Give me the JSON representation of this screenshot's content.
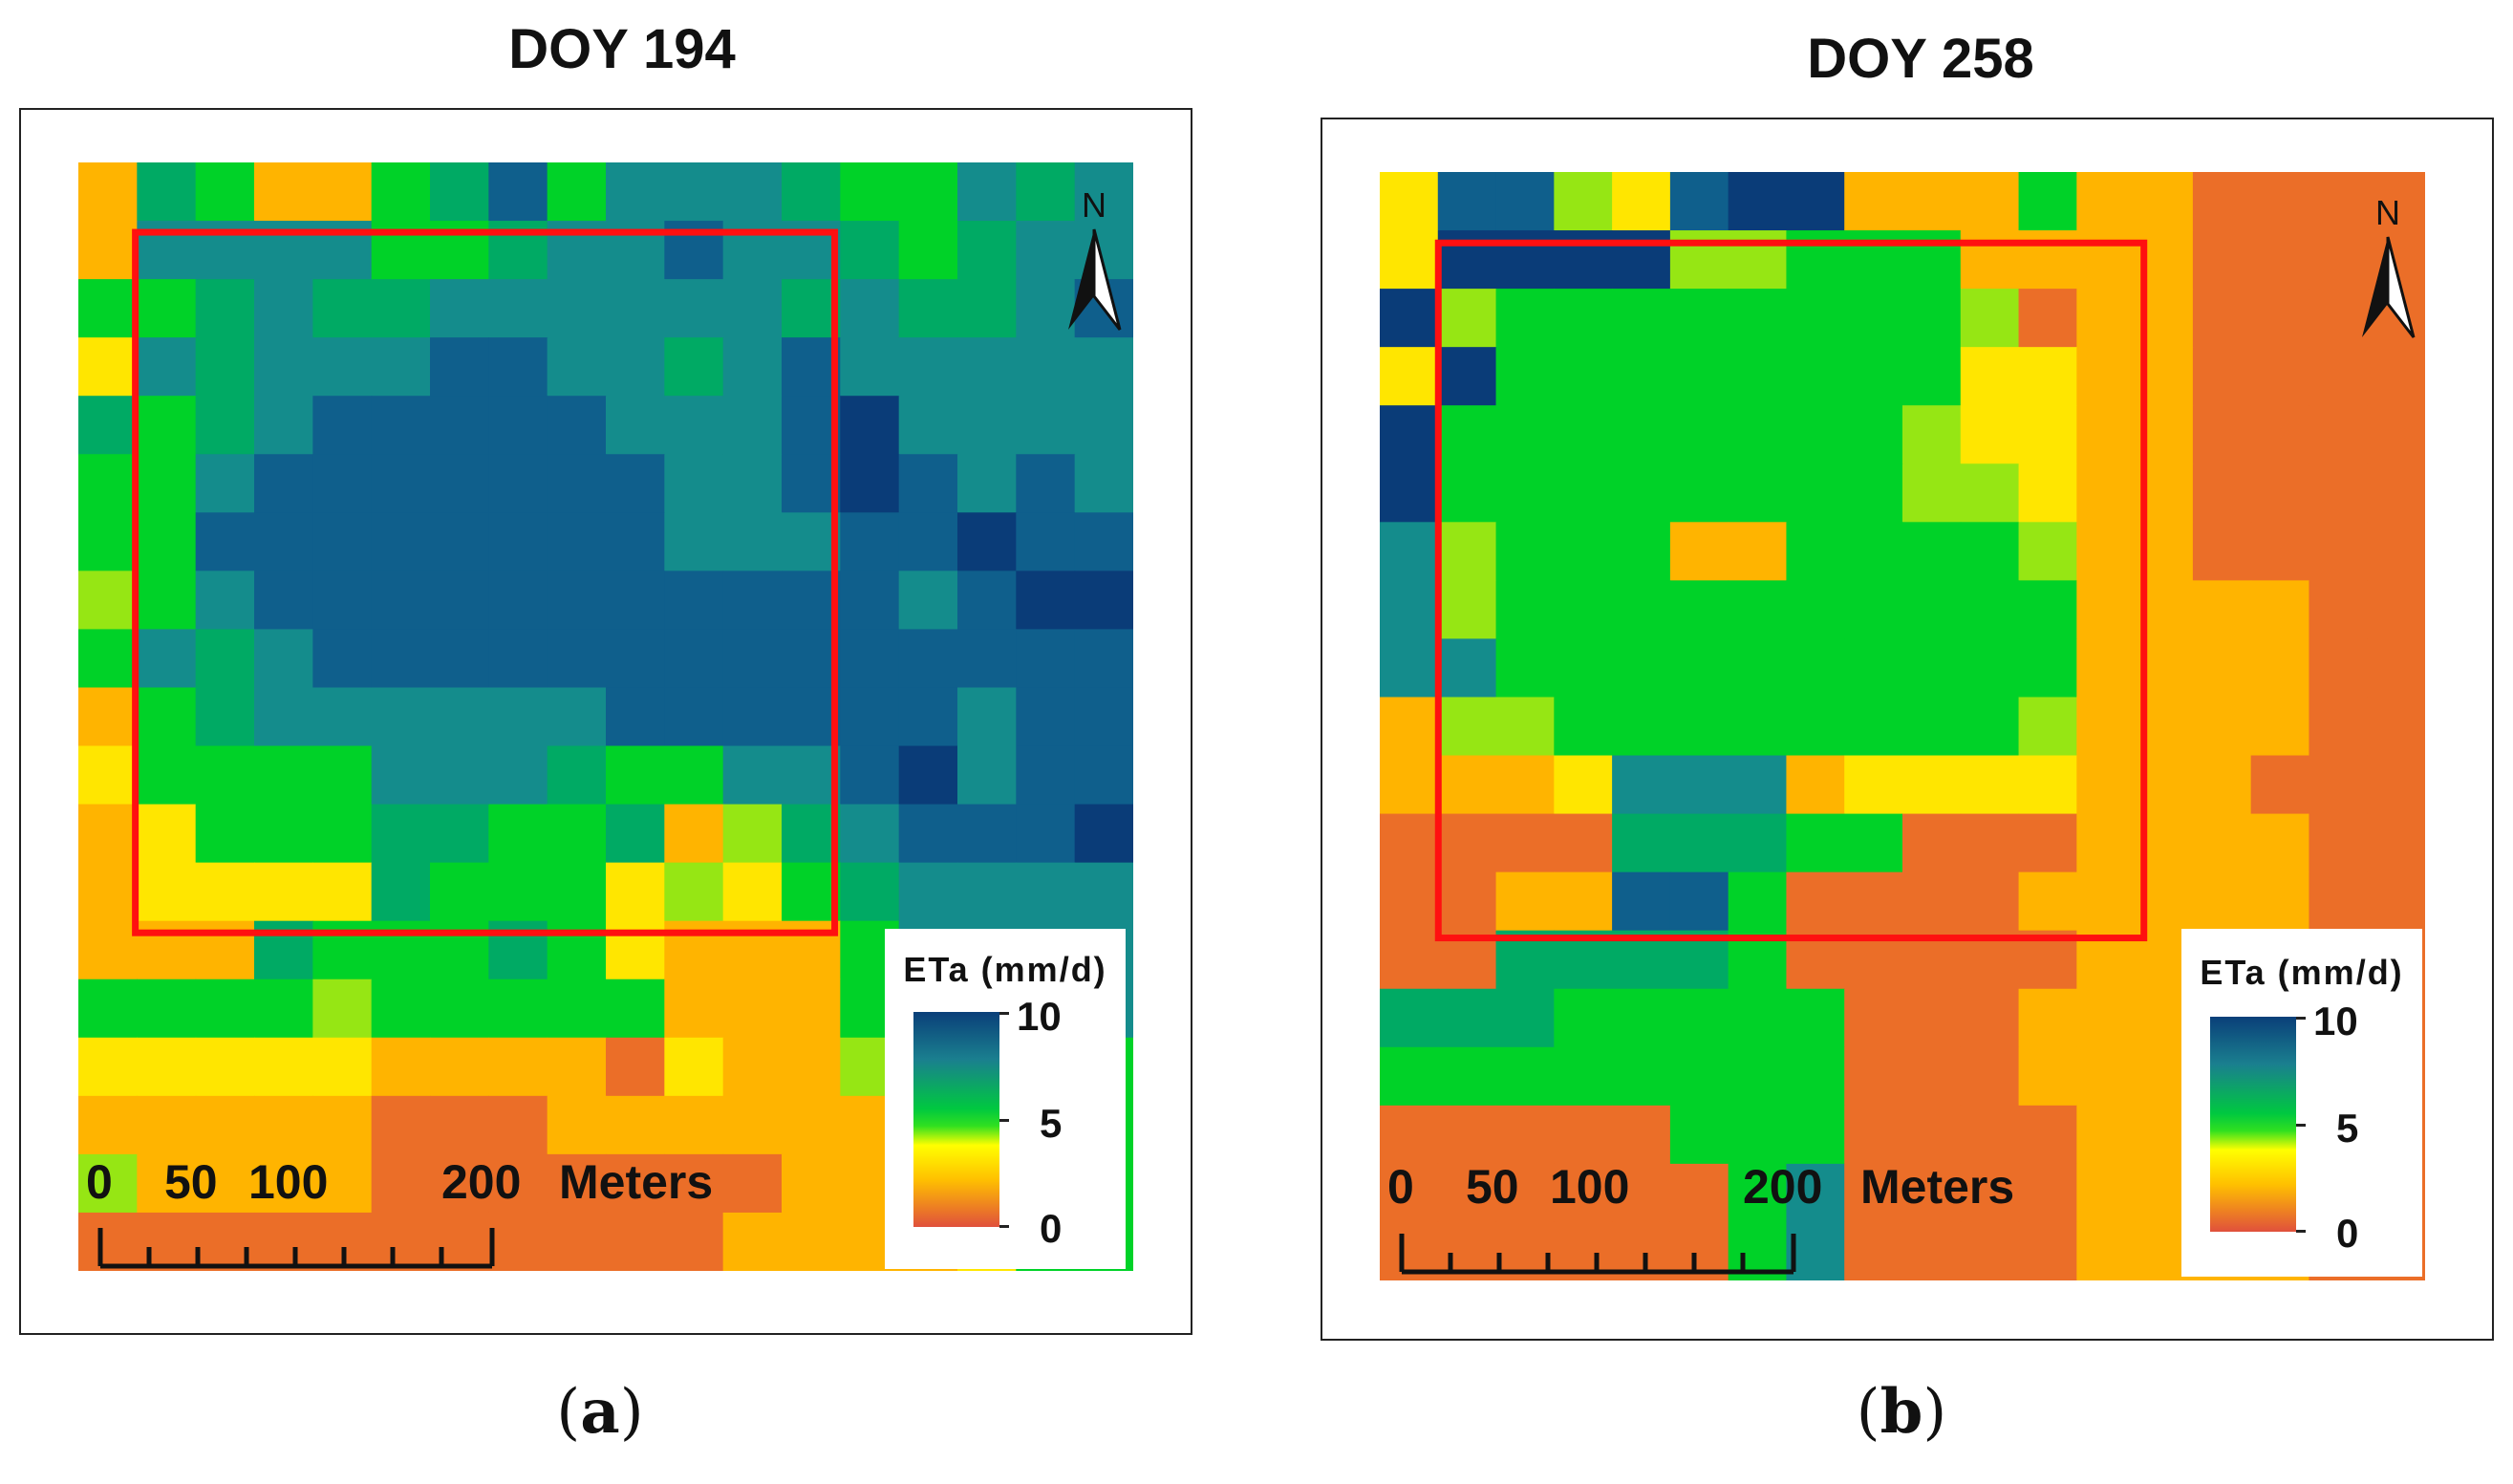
{
  "panels": [
    {
      "id": "a",
      "title": "DOY 194",
      "label": "a",
      "legend": {
        "title": "ETa (mm/d)",
        "max": "10",
        "mid": "5",
        "min": "0"
      },
      "scale": {
        "t0": "0",
        "t1": "50",
        "t2": "100",
        "t3": "200",
        "unit": "Meters"
      },
      "north": "N",
      "grid_values": [
        [
          3,
          7,
          6,
          3,
          3,
          6,
          7,
          9,
          6,
          8,
          8,
          8,
          7,
          6,
          6,
          8,
          7,
          8
        ],
        [
          3,
          8,
          8,
          8,
          8,
          6,
          6,
          7,
          8,
          8,
          9,
          8,
          8,
          7,
          6,
          7,
          8,
          8
        ],
        [
          6,
          6,
          7,
          8,
          7,
          7,
          8,
          8,
          8,
          8,
          8,
          8,
          7,
          8,
          7,
          7,
          8,
          9
        ],
        [
          4,
          8,
          7,
          8,
          8,
          8,
          9,
          9,
          8,
          8,
          7,
          8,
          9,
          8,
          8,
          8,
          8,
          8
        ],
        [
          7,
          6,
          7,
          8,
          9,
          9,
          9,
          9,
          9,
          8,
          8,
          8,
          9,
          10,
          8,
          8,
          8,
          8
        ],
        [
          6,
          6,
          8,
          9,
          9,
          9,
          9,
          9,
          9,
          9,
          8,
          8,
          9,
          10,
          9,
          8,
          9,
          8
        ],
        [
          6,
          6,
          9,
          9,
          9,
          9,
          9,
          9,
          9,
          9,
          8,
          8,
          8,
          9,
          9,
          10,
          9,
          9
        ],
        [
          5,
          6,
          8,
          9,
          9,
          9,
          9,
          9,
          9,
          9,
          9,
          9,
          9,
          9,
          8,
          9,
          10,
          10
        ],
        [
          6,
          8,
          7,
          8,
          9,
          9,
          9,
          9,
          9,
          9,
          9,
          9,
          9,
          9,
          9,
          9,
          9,
          9
        ],
        [
          3,
          6,
          7,
          8,
          8,
          8,
          8,
          8,
          8,
          9,
          9,
          9,
          9,
          9,
          9,
          8,
          9,
          9
        ],
        [
          4,
          6,
          6,
          6,
          6,
          8,
          8,
          8,
          7,
          6,
          6,
          8,
          8,
          9,
          10,
          8,
          9,
          9
        ],
        [
          3,
          4,
          6,
          6,
          6,
          7,
          7,
          6,
          6,
          7,
          3,
          5,
          7,
          8,
          9,
          9,
          9,
          10
        ],
        [
          3,
          4,
          4,
          4,
          4,
          7,
          6,
          6,
          6,
          4,
          5,
          4,
          6,
          7,
          8,
          8,
          8,
          8
        ],
        [
          3,
          3,
          3,
          7,
          6,
          6,
          6,
          7,
          6,
          4,
          3,
          3,
          3,
          6,
          8,
          8,
          8,
          8
        ],
        [
          6,
          6,
          6,
          6,
          5,
          6,
          6,
          6,
          6,
          6,
          3,
          3,
          3,
          6,
          5,
          8,
          8,
          8
        ],
        [
          4,
          4,
          4,
          4,
          4,
          3,
          3,
          3,
          3,
          2,
          4,
          3,
          3,
          5,
          5,
          6,
          6,
          6
        ],
        [
          3,
          3,
          3,
          3,
          3,
          2,
          2,
          2,
          3,
          3,
          3,
          3,
          3,
          3,
          4,
          6,
          6,
          6
        ],
        [
          5,
          3,
          3,
          3,
          3,
          2,
          2,
          2,
          2,
          2,
          2,
          2,
          3,
          3,
          4,
          6,
          6,
          6
        ],
        [
          2,
          2,
          2,
          2,
          2,
          2,
          2,
          2,
          2,
          2,
          2,
          3,
          3,
          3,
          3,
          4,
          6,
          6
        ]
      ]
    },
    {
      "id": "b",
      "title": "DOY 258",
      "label": "b",
      "legend": {
        "title": "ETa (mm/d)",
        "max": "10",
        "mid": "5",
        "min": "0"
      },
      "scale": {
        "t0": "0",
        "t1": "50",
        "t2": "100",
        "t3": "200",
        "unit": "Meters"
      },
      "north": "N",
      "grid_values": [
        [
          4,
          9,
          9,
          5,
          4,
          9,
          10,
          10,
          3,
          3,
          3,
          6,
          3,
          3,
          2,
          2,
          2,
          2
        ],
        [
          4,
          10,
          10,
          10,
          10,
          5,
          5,
          6,
          6,
          6,
          3,
          3,
          3,
          3,
          2,
          2,
          2,
          2
        ],
        [
          10,
          5,
          6,
          6,
          6,
          6,
          6,
          6,
          6,
          6,
          5,
          2,
          3,
          3,
          2,
          2,
          2,
          2
        ],
        [
          4,
          10,
          6,
          6,
          6,
          6,
          6,
          6,
          6,
          6,
          4,
          4,
          3,
          3,
          2,
          2,
          2,
          2
        ],
        [
          10,
          6,
          6,
          6,
          6,
          6,
          6,
          6,
          6,
          5,
          4,
          4,
          3,
          3,
          2,
          2,
          2,
          2
        ],
        [
          10,
          6,
          6,
          6,
          6,
          6,
          6,
          6,
          6,
          5,
          5,
          4,
          3,
          3,
          2,
          2,
          2,
          2
        ],
        [
          8,
          5,
          6,
          6,
          6,
          3,
          3,
          6,
          6,
          6,
          6,
          5,
          3,
          3,
          2,
          2,
          2,
          2
        ],
        [
          8,
          5,
          6,
          6,
          6,
          6,
          6,
          6,
          6,
          6,
          6,
          6,
          3,
          3,
          3,
          3,
          2,
          2
        ],
        [
          8,
          8,
          6,
          6,
          6,
          6,
          6,
          6,
          6,
          6,
          6,
          6,
          3,
          3,
          3,
          3,
          2,
          2
        ],
        [
          3,
          5,
          5,
          6,
          6,
          6,
          6,
          6,
          6,
          6,
          6,
          5,
          3,
          3,
          3,
          3,
          2,
          2
        ],
        [
          3,
          3,
          3,
          4,
          8,
          8,
          8,
          3,
          4,
          4,
          4,
          4,
          3,
          3,
          3,
          2,
          2,
          2
        ],
        [
          2,
          2,
          2,
          2,
          7,
          7,
          7,
          6,
          6,
          2,
          2,
          2,
          3,
          3,
          3,
          3,
          2,
          2
        ],
        [
          2,
          2,
          3,
          3,
          9,
          9,
          6,
          2,
          2,
          2,
          2,
          3,
          3,
          3,
          3,
          3,
          2,
          2
        ],
        [
          2,
          2,
          7,
          7,
          7,
          7,
          6,
          2,
          2,
          2,
          2,
          2,
          3,
          3,
          3,
          3,
          2,
          2
        ],
        [
          7,
          7,
          7,
          6,
          6,
          6,
          6,
          6,
          2,
          2,
          2,
          3,
          3,
          3,
          3,
          3,
          2,
          2
        ],
        [
          6,
          6,
          6,
          6,
          6,
          6,
          6,
          6,
          2,
          2,
          2,
          3,
          3,
          3,
          3,
          3,
          2,
          2
        ],
        [
          2,
          2,
          2,
          2,
          2,
          6,
          6,
          6,
          2,
          2,
          2,
          2,
          3,
          3,
          3,
          3,
          2,
          2
        ],
        [
          2,
          2,
          2,
          2,
          2,
          2,
          6,
          8,
          2,
          2,
          2,
          2,
          3,
          3,
          3,
          3,
          2,
          2
        ],
        [
          2,
          2,
          2,
          2,
          2,
          2,
          6,
          8,
          2,
          2,
          2,
          2,
          3,
          3,
          3,
          3,
          2,
          2
        ]
      ]
    }
  ]
}
